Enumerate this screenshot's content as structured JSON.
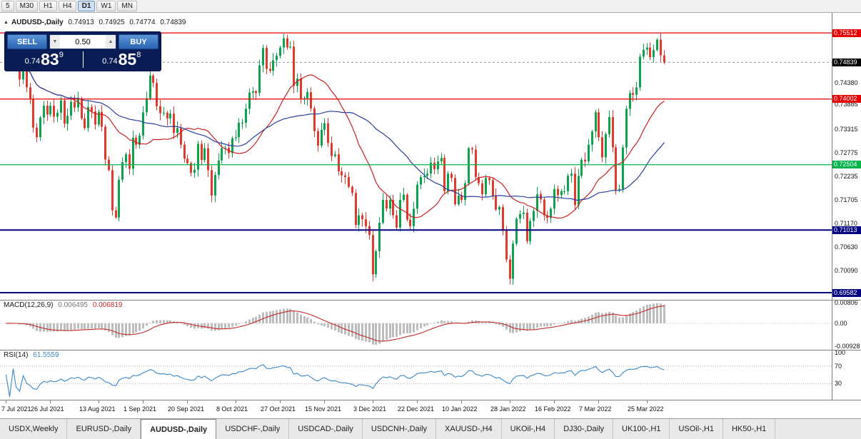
{
  "toolbar": {
    "periods": [
      {
        "label": "5",
        "active": false
      },
      {
        "label": "M30",
        "active": false
      },
      {
        "label": "H1",
        "active": false
      },
      {
        "label": "H4",
        "active": false
      },
      {
        "label": "D1",
        "active": true
      },
      {
        "label": "W1",
        "active": false
      },
      {
        "label": "MN",
        "active": false
      }
    ]
  },
  "chart_header": {
    "icon": "▲",
    "symbol_label": "AUDUSD-,Daily",
    "open": "0.74913",
    "high": "0.74925",
    "low": "0.74774",
    "close": "0.74839"
  },
  "trade_panel": {
    "sell_label": "SELL",
    "buy_label": "BUY",
    "volume": "0.50",
    "volume_down_glyph": "▼",
    "volume_up_glyph": "▲",
    "sell_price_prefix": "0.74",
    "sell_price_big": "83",
    "sell_price_sup": "9",
    "buy_price_prefix": "0.74",
    "buy_price_big": "85",
    "buy_price_sup": "8"
  },
  "tabs": [
    {
      "label": "USDX,Weekly",
      "active": false
    },
    {
      "label": "EURUSD-,Daily",
      "active": false
    },
    {
      "label": "AUDUSD-,Daily",
      "active": true
    },
    {
      "label": "USDCHF-,Daily",
      "active": false
    },
    {
      "label": "USDCAD-,Daily",
      "active": false
    },
    {
      "label": "USDCNH-,Daily",
      "active": false
    },
    {
      "label": "XAUUSD-,H4",
      "active": false
    },
    {
      "label": "UKOil-,H4",
      "active": false
    },
    {
      "label": "DJ30-,Daily",
      "active": false
    },
    {
      "label": "UK100-,H1",
      "active": false
    },
    {
      "label": "USOil-,H1",
      "active": false
    },
    {
      "label": "HK50-,H1",
      "active": false
    }
  ],
  "chart_data": {
    "type": "candlestick",
    "symbol": "AUDUSD",
    "timeframe": "Daily",
    "price_axis": {
      "top": 0.7597,
      "bottom": 0.6942,
      "tick_labels": [
        "0.74380",
        "0.73885",
        "0.73315",
        "0.72775",
        "0.72235",
        "0.71705",
        "0.71170",
        "0.70630",
        "0.70090"
      ]
    },
    "levels": [
      {
        "price": 0.75512,
        "label": "0.75512",
        "color": "#e60000",
        "type": "resistance"
      },
      {
        "price": 0.74002,
        "label": "0.74002",
        "color": "#e60000",
        "type": "resistance"
      },
      {
        "price": 0.72504,
        "label": "0.72504",
        "color": "#00b34a",
        "type": "support"
      },
      {
        "price": 0.71013,
        "label": "0.71013",
        "color": "#000080",
        "type": "support"
      },
      {
        "price": 0.69582,
        "label": "0.69582",
        "color": "#000080",
        "type": "support"
      }
    ],
    "current_price": {
      "value": 0.74839,
      "label": "0.74839"
    },
    "candle_colors": {
      "up": "#0ca24e",
      "down": "#e03a2c"
    },
    "moving_averages": [
      {
        "period": 20,
        "color": "#cc2020",
        "name": "MA20"
      },
      {
        "period": 40,
        "color": "#2b3f9e",
        "name": "MA40"
      }
    ],
    "x_axis_labels": [
      {
        "label": "7 Jul 2021",
        "i": 0
      },
      {
        "label": "26 Jul 2021",
        "i": 13
      },
      {
        "label": "13 Aug 2021",
        "i": 27
      },
      {
        "label": "1 Sep 2021",
        "i": 40
      },
      {
        "label": "20 Sep 2021",
        "i": 53
      },
      {
        "label": "8 Oct 2021",
        "i": 67
      },
      {
        "label": "27 Oct 2021",
        "i": 80
      },
      {
        "label": "15 Nov 2021",
        "i": 93
      },
      {
        "label": "3 Dec 2021",
        "i": 107
      },
      {
        "label": "22 Dec 2021",
        "i": 120
      },
      {
        "label": "10 Jan 2022",
        "i": 133
      },
      {
        "label": "28 Jan 2022",
        "i": 147
      },
      {
        "label": "16 Feb 2022",
        "i": 160
      },
      {
        "label": "7 Mar 2022",
        "i": 173
      },
      {
        "label": "25 Mar 2022",
        "i": 187
      }
    ],
    "closes": [
      0.7487,
      0.7483,
      0.749,
      0.747,
      0.7445,
      0.7483,
      0.7427,
      0.74,
      0.7335,
      0.7313,
      0.7358,
      0.7385,
      0.7365,
      0.7385,
      0.736,
      0.7369,
      0.7397,
      0.7344,
      0.7362,
      0.7394,
      0.7381,
      0.7402,
      0.7356,
      0.7334,
      0.7382,
      0.7372,
      0.7342,
      0.7371,
      0.7337,
      0.7262,
      0.7238,
      0.7146,
      0.713,
      0.7216,
      0.7256,
      0.7274,
      0.7241,
      0.7312,
      0.7296,
      0.7317,
      0.737,
      0.7402,
      0.7454,
      0.7437,
      0.7384,
      0.7368,
      0.7369,
      0.7356,
      0.7367,
      0.7323,
      0.7334,
      0.7296,
      0.7264,
      0.7254,
      0.7232,
      0.7239,
      0.7298,
      0.7261,
      0.7288,
      0.7238,
      0.718,
      0.7227,
      0.726,
      0.7288,
      0.7289,
      0.7277,
      0.7311,
      0.7313,
      0.7346,
      0.7346,
      0.7378,
      0.7415,
      0.7418,
      0.7414,
      0.7477,
      0.7517,
      0.7469,
      0.7465,
      0.7489,
      0.7499,
      0.7518,
      0.7539,
      0.7518,
      0.752,
      0.743,
      0.7447,
      0.74,
      0.7402,
      0.7416,
      0.7379,
      0.7327,
      0.7294,
      0.733,
      0.7345,
      0.73,
      0.727,
      0.7274,
      0.7235,
      0.7226,
      0.7222,
      0.72,
      0.7186,
      0.7113,
      0.7135,
      0.7126,
      0.711,
      0.709,
      0.7,
      0.7053,
      0.7118,
      0.717,
      0.715,
      0.717,
      0.7135,
      0.7107,
      0.717,
      0.7182,
      0.7125,
      0.711,
      0.715,
      0.7205,
      0.7222,
      0.7225,
      0.723,
      0.7255,
      0.724,
      0.7258,
      0.7266,
      0.719,
      0.723,
      0.722,
      0.716,
      0.718,
      0.717,
      0.7208,
      0.7288,
      0.7285,
      0.7222,
      0.7208,
      0.7183,
      0.722,
      0.7215,
      0.718,
      0.7148,
      0.7154,
      0.71,
      0.7034,
      0.699,
      0.707,
      0.7127,
      0.7138,
      0.7141,
      0.7076,
      0.7122,
      0.7145,
      0.7183,
      0.7171,
      0.7135,
      0.7129,
      0.715,
      0.7195,
      0.7181,
      0.719,
      0.719,
      0.7225,
      0.723,
      0.7158,
      0.7225,
      0.7262,
      0.7258,
      0.7296,
      0.7326,
      0.737,
      0.7313,
      0.7267,
      0.732,
      0.7359,
      0.729,
      0.7193,
      0.7195,
      0.729,
      0.7378,
      0.7414,
      0.741,
      0.7427,
      0.7497,
      0.7513,
      0.7518,
      0.7496,
      0.7512,
      0.7536,
      0.75,
      0.74839
    ],
    "macd": {
      "label": "MACD(12,26,9)",
      "fast": 12,
      "slow": 26,
      "signal": 9,
      "value": "0.006495",
      "signal_value": "0.006819",
      "scale_labels": [
        {
          "v": 0.00806,
          "label": "0.00806"
        },
        {
          "v": 0,
          "label": "0.00"
        },
        {
          "v": -0.00928,
          "label": "-0.00928"
        }
      ],
      "scale_max": 0.0092,
      "scale_min": -0.0104,
      "histogram_color": "#bdbdbd",
      "signal_color": "#c62828"
    },
    "rsi": {
      "label": "RSI(14)",
      "period": 14,
      "value": "61.5559",
      "scale_labels": [
        {
          "v": 100,
          "label": "100"
        },
        {
          "v": 70,
          "label": "70"
        },
        {
          "v": 30,
          "label": "30"
        }
      ],
      "levels": [
        70,
        30
      ],
      "scale_max": 100,
      "scale_min": 0,
      "color": "#3a87c8"
    }
  }
}
